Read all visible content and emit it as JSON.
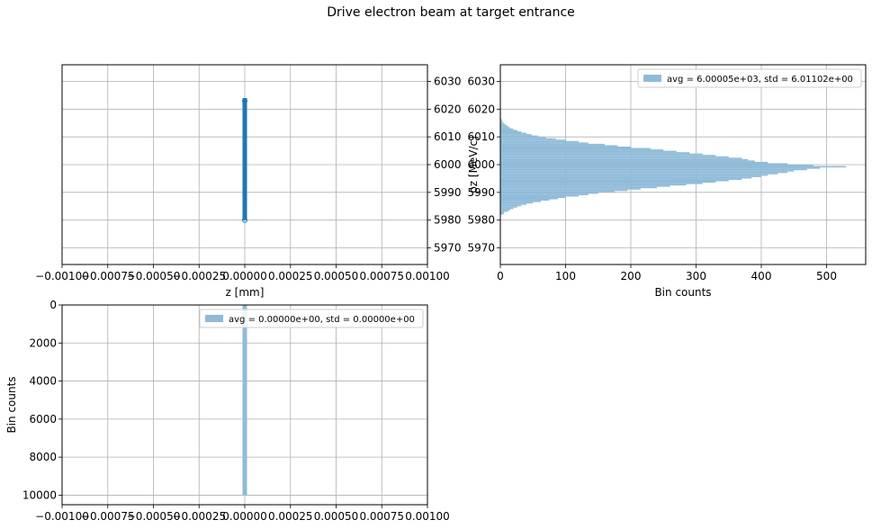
{
  "figure": {
    "title": "Drive electron beam at target entrance"
  },
  "colors": {
    "scatter": "#1f77b4",
    "hist": "#8fbbd9",
    "grid": "#b0b0b0"
  },
  "chart_data": [
    {
      "id": "phase-space",
      "type": "scatter",
      "xlabel": "z [mm]",
      "ylabel": "",
      "xlim": [
        -0.001,
        0.001
      ],
      "ylim": [
        5964,
        6036
      ],
      "x_ticks": [
        -0.001,
        -0.00075,
        -0.0005,
        -0.00025,
        0,
        0.00025,
        0.0005,
        0.00075,
        0.001
      ],
      "x_tick_labels": [
        "−0.00100",
        "−0.00075",
        "−0.00050",
        "−0.00025",
        "0.00000",
        "0.00025",
        "0.00050",
        "0.00075",
        "0.00100"
      ],
      "y_ticks": [
        5970,
        5980,
        5990,
        6000,
        6010,
        6020,
        6030
      ],
      "y_tick_labels": [
        "5970",
        "5980",
        "5990",
        "6000",
        "6010",
        "6020",
        "6030"
      ],
      "y_axis_side": "right",
      "grid": true,
      "points": {
        "x": 0,
        "y_range": [
          5980,
          6024
        ],
        "note_outliers": [
          5980,
          6023
        ]
      }
    },
    {
      "id": "pz-histogram",
      "type": "bar",
      "orientation": "horizontal",
      "xlabel": "Bin counts",
      "ylabel": "pz [MeV/c]",
      "xlim": [
        0,
        560
      ],
      "ylim": [
        5964,
        6036
      ],
      "x_ticks": [
        0,
        100,
        200,
        300,
        400,
        500
      ],
      "x_tick_labels": [
        "0",
        "100",
        "200",
        "300",
        "400",
        "500"
      ],
      "y_ticks": [
        5970,
        5980,
        5990,
        6000,
        6010,
        6020,
        6030
      ],
      "y_tick_labels": [
        "5970",
        "5980",
        "5990",
        "6000",
        "6010",
        "6020",
        "6030"
      ],
      "grid": true,
      "legend": {
        "label": "avg = 6.00005e+03, std = 6.01102e+00",
        "placement": "top-right"
      },
      "bin_width": 0.5,
      "bins_start": 5982,
      "counts": [
        5,
        6,
        12,
        15,
        20,
        26,
        32,
        40,
        50,
        62,
        75,
        88,
        100,
        120,
        135,
        150,
        175,
        195,
        215,
        240,
        260,
        285,
        310,
        330,
        350,
        370,
        385,
        400,
        410,
        425,
        440,
        450,
        470,
        490,
        530,
        480,
        440,
        410,
        390,
        380,
        370,
        350,
        330,
        310,
        290,
        270,
        250,
        230,
        200,
        180,
        160,
        135,
        120,
        100,
        85,
        70,
        58,
        48,
        40,
        32,
        26,
        20,
        15,
        12,
        9,
        6,
        4,
        3,
        2,
        1,
        1,
        1,
        1,
        1
      ]
    },
    {
      "id": "z-histogram",
      "type": "bar",
      "orientation": "vertical",
      "xlabel": "",
      "ylabel": "Bin counts",
      "xlim": [
        -0.001,
        0.001
      ],
      "ylim": [
        10500,
        0
      ],
      "y_inverted": true,
      "x_ticks": [
        -0.001,
        -0.00075,
        -0.0005,
        -0.00025,
        0,
        0.00025,
        0.0005,
        0.00075,
        0.001
      ],
      "x_tick_labels": [
        "−0.00100",
        "−0.00075",
        "−0.00050",
        "−0.00025",
        "0.00000",
        "0.00025",
        "0.00050",
        "0.00075",
        "0.00100"
      ],
      "y_ticks": [
        0,
        2000,
        4000,
        6000,
        8000,
        10000
      ],
      "y_tick_labels": [
        "0",
        "2000",
        "4000",
        "6000",
        "8000",
        "10000"
      ],
      "grid": true,
      "legend": {
        "label": "avg = 0.00000e+00, std = 0.00000e+00",
        "placement": "top-right"
      },
      "bars": [
        {
          "x": 0,
          "count": 10000
        }
      ]
    }
  ]
}
